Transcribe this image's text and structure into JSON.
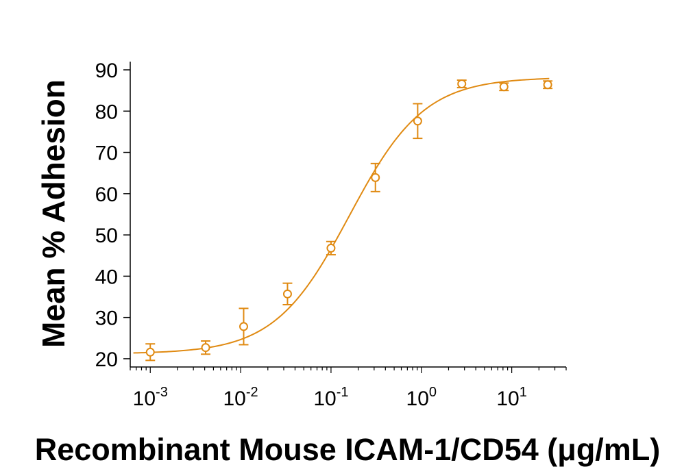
{
  "chart_data": {
    "type": "scatter",
    "title": "",
    "xlabel": "Recombinant Mouse ICAM-1/CD54 (μg/mL)",
    "ylabel": "Mean % Adhesion",
    "x_scale": "log",
    "xlim": [
      0.0006,
      40
    ],
    "ylim": [
      18,
      91
    ],
    "x_ticks": [
      {
        "value": 0.001,
        "base": "10",
        "exp": "-3"
      },
      {
        "value": 0.01,
        "base": "10",
        "exp": "-2"
      },
      {
        "value": 0.1,
        "base": "10",
        "exp": "-1"
      },
      {
        "value": 1,
        "base": "10",
        "exp": "0"
      },
      {
        "value": 10,
        "base": "10",
        "exp": "1"
      }
    ],
    "y_ticks": [
      20,
      30,
      40,
      50,
      60,
      70,
      80,
      90
    ],
    "grid": false,
    "legend": "none",
    "color": "#E08A12",
    "series": [
      {
        "x": [
          0.001,
          0.0041,
          0.0108,
          0.033,
          0.1,
          0.31,
          0.91,
          2.8,
          8.2,
          25
        ],
        "y": [
          21.6,
          22.7,
          27.8,
          35.7,
          46.8,
          63.9,
          77.6,
          86.6,
          85.9,
          86.4
        ],
        "err": [
          2.0,
          1.6,
          4.4,
          2.6,
          1.6,
          3.4,
          4.2,
          0.9,
          0.9,
          0.9
        ]
      }
    ],
    "fit_curve": {
      "type": "4PL",
      "bottom": 21.2,
      "top": 88.2,
      "ec50": 0.16,
      "hill": 1.05
    }
  }
}
